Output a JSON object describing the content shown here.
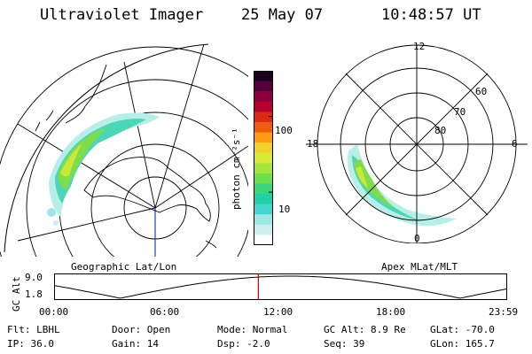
{
  "header": {
    "instrument": "Ultraviolet Imager",
    "date": "25 May 07",
    "time": "10:48:57 UT"
  },
  "left_panel": {
    "label": "Geographic Lat/Lon"
  },
  "right_panel": {
    "label": "Apex MLat/MLT",
    "mlt_labels": {
      "top": "12",
      "left": "18",
      "right": "6",
      "bottom": "0"
    },
    "lat_labels": [
      "60",
      "70",
      "80"
    ]
  },
  "colorbar": {
    "unit": "photon cm⁻²s⁻¹",
    "ticks": [
      {
        "value": 100,
        "label": "100"
      },
      {
        "value": 10,
        "label": "10"
      }
    ],
    "range": [
      2,
      400
    ],
    "colors": [
      "#ffffff",
      "#cdeff0",
      "#9fe6e8",
      "#45d6cf",
      "#1fd0a8",
      "#3bd67a",
      "#6ee04d",
      "#a6e63a",
      "#d8ea33",
      "#f2d02c",
      "#ff9a12",
      "#f25a10",
      "#db2a14",
      "#b4002c",
      "#8c003c",
      "#54003c",
      "#1c001e"
    ]
  },
  "altitude_plot": {
    "axis_label": "GC Alt",
    "y_ticks": [
      "9.0",
      "1.8"
    ],
    "x_ticks": [
      "00:00",
      "06:00",
      "12:00",
      "18:00",
      "23:59"
    ],
    "current_time_hours": 10.82,
    "curve_color": "#000000",
    "marker_color": "#dd0000"
  },
  "status": {
    "filter": "Flt: LBHL",
    "door": "Door: Open",
    "mode": "Mode: Normal",
    "gc_alt": "GC Alt: 8.9 Re",
    "glat": "GLat: -70.0",
    "ip": "IP: 36.0",
    "gain": "Gain: 14",
    "dsp": "Dsp:   -2.0",
    "seq": "Seq: 39",
    "glon": "GLon: 165.7"
  }
}
